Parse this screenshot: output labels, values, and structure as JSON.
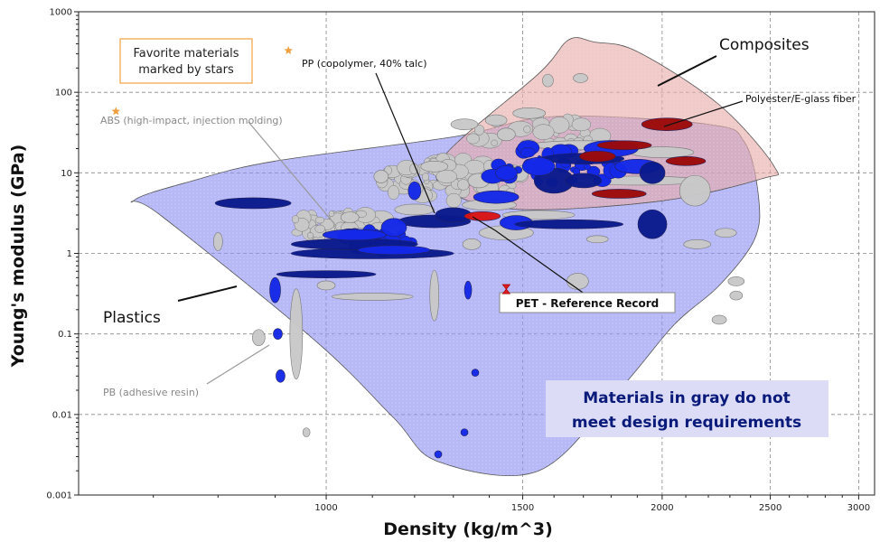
{
  "chart_data": {
    "type": "scatter",
    "title": "",
    "xlabel": "Density (kg/m^3)",
    "ylabel": "Young's modulus (GPa)",
    "x_scale": "log",
    "y_scale": "log",
    "xlim": [
      600,
      3100
    ],
    "ylim": [
      0.001,
      1000
    ],
    "x_ticks": [
      1000,
      1500,
      2000,
      2500,
      3000
    ],
    "y_ticks": [
      0.001,
      0.01,
      0.1,
      1,
      10,
      100,
      1000
    ],
    "x_tick_labels": [
      "1000",
      "1500",
      "2000",
      "2500",
      "3000"
    ],
    "y_tick_labels": [
      "0.001",
      "0.01",
      "0.1",
      "1",
      "10",
      "100",
      "1000"
    ],
    "grid": true,
    "envelopes": [
      {
        "name": "Plastics",
        "fill": "#8a8ef0",
        "points": [
          [
            672,
            4.5
          ],
          [
            710,
            3
          ],
          [
            980,
            0.08
          ],
          [
            1150,
            0.009
          ],
          [
            1260,
            0.0026
          ],
          [
            1550,
            0.002
          ],
          [
            1830,
            0.02
          ],
          [
            2050,
            0.13
          ],
          [
            2250,
            0.4
          ],
          [
            2420,
            1.5
          ],
          [
            2440,
            5
          ],
          [
            2370,
            24
          ],
          [
            2200,
            40
          ],
          [
            1600,
            50
          ],
          [
            1300,
            28
          ],
          [
            900,
            14
          ],
          [
            760,
            8
          ]
        ]
      },
      {
        "name": "Composites",
        "fill": "#e6a9a6",
        "points": [
          [
            1270,
            15
          ],
          [
            1550,
            170
          ],
          [
            1650,
            450
          ],
          [
            1740,
            420
          ],
          [
            1900,
            320
          ],
          [
            2250,
            70
          ],
          [
            2520,
            12
          ],
          [
            2460,
            8.5
          ],
          [
            2000,
            4.5
          ],
          [
            1500,
            3.5
          ],
          [
            1300,
            5.5
          ]
        ]
      }
    ],
    "materials": [
      {
        "x": 860,
        "y": 4.2,
        "rx": 42,
        "ry": 6,
        "color": "#0a1a8c"
      },
      {
        "x": 1250,
        "y": 2.5,
        "rx": 40,
        "ry": 7,
        "color": "#0a1a8c"
      },
      {
        "x": 1100,
        "y": 1.0,
        "rx": 90,
        "ry": 6,
        "color": "#0a1a8c"
      },
      {
        "x": 1060,
        "y": 1.3,
        "rx": 70,
        "ry": 6,
        "color": "#0a1a8c"
      },
      {
        "x": 1000,
        "y": 0.55,
        "rx": 55,
        "ry": 4,
        "color": "#0a1a8c"
      },
      {
        "x": 1060,
        "y": 1.7,
        "rx": 35,
        "ry": 6,
        "color": "#1428e8"
      },
      {
        "x": 1150,
        "y": 1.1,
        "rx": 40,
        "ry": 5,
        "color": "#1428e8"
      },
      {
        "x": 1480,
        "y": 2.4,
        "rx": 18,
        "ry": 8,
        "color": "#1428e8"
      },
      {
        "x": 1420,
        "y": 5,
        "rx": 25,
        "ry": 7,
        "color": "#1428e8"
      },
      {
        "x": 1650,
        "y": 2.3,
        "rx": 60,
        "ry": 5,
        "color": "#0a1a8c"
      },
      {
        "x": 1960,
        "y": 2.3,
        "rx": 16,
        "ry": 16,
        "color": "#0a1a8c"
      },
      {
        "x": 1600,
        "y": 8,
        "rx": 22,
        "ry": 14,
        "color": "#0a1a8c"
      },
      {
        "x": 1700,
        "y": 15,
        "rx": 45,
        "ry": 6,
        "color": "#0a1a8c"
      },
      {
        "x": 1800,
        "y": 20,
        "rx": 30,
        "ry": 9,
        "color": "#1428e8"
      },
      {
        "x": 1900,
        "y": 12,
        "rx": 25,
        "ry": 8,
        "color": "#1428e8"
      },
      {
        "x": 1960,
        "y": 10,
        "rx": 14,
        "ry": 12,
        "color": "#0a1a8c"
      },
      {
        "x": 1550,
        "y": 12,
        "rx": 18,
        "ry": 10,
        "color": "#1428e8"
      },
      {
        "x": 1450,
        "y": 10,
        "rx": 12,
        "ry": 8,
        "color": "#1428e8"
      },
      {
        "x": 900,
        "y": 0.35,
        "rx": 6,
        "ry": 14,
        "color": "#1428e8"
      },
      {
        "x": 905,
        "y": 0.1,
        "rx": 5,
        "ry": 6,
        "color": "#1428e8"
      },
      {
        "x": 910,
        "y": 0.03,
        "rx": 5,
        "ry": 7,
        "color": "#1428e8"
      },
      {
        "x": 1340,
        "y": 0.35,
        "rx": 4,
        "ry": 10,
        "color": "#1428e8"
      },
      {
        "x": 1360,
        "y": 0.033,
        "rx": 4,
        "ry": 4,
        "color": "#1428e8"
      },
      {
        "x": 1330,
        "y": 0.006,
        "rx": 4,
        "ry": 4,
        "color": "#1428e8"
      },
      {
        "x": 1260,
        "y": 0.0032,
        "rx": 4,
        "ry": 4,
        "color": "#1428e8"
      },
      {
        "x": 1200,
        "y": 6,
        "rx": 7,
        "ry": 10,
        "color": "#1428e8"
      },
      {
        "x": 1300,
        "y": 3,
        "rx": 20,
        "ry": 8,
        "color": "#0a1a8c"
      },
      {
        "x": 1150,
        "y": 2.1,
        "rx": 14,
        "ry": 10,
        "color": "#1428e8"
      },
      {
        "x": 1700,
        "y": 8,
        "rx": 20,
        "ry": 8,
        "color": "#0a1a8c"
      },
      {
        "x": 1380,
        "y": 2.9,
        "rx": 20,
        "ry": 5,
        "color": "#d81414"
      },
      {
        "x": 2020,
        "y": 40,
        "rx": 28,
        "ry": 7,
        "color": "#9c0a0a"
      },
      {
        "x": 1750,
        "y": 16,
        "rx": 20,
        "ry": 6,
        "color": "#9c0a0a"
      },
      {
        "x": 2100,
        "y": 14,
        "rx": 22,
        "ry": 5,
        "color": "#9c0a0a"
      },
      {
        "x": 1830,
        "y": 5.5,
        "rx": 30,
        "ry": 5,
        "color": "#9c0a0a"
      },
      {
        "x": 1850,
        "y": 22,
        "rx": 30,
        "ry": 5,
        "color": "#9c0a0a"
      },
      {
        "x": 1690,
        "y": 150,
        "rx": 8,
        "ry": 5,
        "color": "#c8c8c8"
      },
      {
        "x": 1580,
        "y": 140,
        "rx": 6,
        "ry": 7,
        "color": "#c8c8c8"
      },
      {
        "x": 1520,
        "y": 55,
        "rx": 18,
        "ry": 6,
        "color": "#c8c8c8"
      },
      {
        "x": 1420,
        "y": 45,
        "rx": 12,
        "ry": 6,
        "color": "#c8c8c8"
      },
      {
        "x": 1330,
        "y": 40,
        "rx": 15,
        "ry": 6,
        "color": "#c8c8c8"
      },
      {
        "x": 1450,
        "y": 30,
        "rx": 10,
        "ry": 7,
        "color": "#c8c8c8"
      },
      {
        "x": 1700,
        "y": 22,
        "rx": 60,
        "ry": 5,
        "color": "#c8c8c8"
      },
      {
        "x": 1900,
        "y": 8,
        "rx": 70,
        "ry": 5,
        "color": "#c8c8c8"
      },
      {
        "x": 2000,
        "y": 18,
        "rx": 35,
        "ry": 6,
        "color": "#c8c8c8"
      },
      {
        "x": 2140,
        "y": 6,
        "rx": 17,
        "ry": 17,
        "color": "#c8c8c8"
      },
      {
        "x": 1400,
        "y": 4,
        "rx": 30,
        "ry": 6,
        "color": "#c8c8c8"
      },
      {
        "x": 1550,
        "y": 3,
        "rx": 40,
        "ry": 5,
        "color": "#c8c8c8"
      },
      {
        "x": 1450,
        "y": 1.8,
        "rx": 30,
        "ry": 8,
        "color": "#c8c8c8"
      },
      {
        "x": 1680,
        "y": 0.45,
        "rx": 12,
        "ry": 9,
        "color": "#c8c8c8"
      },
      {
        "x": 1250,
        "y": 0.3,
        "rx": 5,
        "ry": 28,
        "color": "#c8c8c8"
      },
      {
        "x": 1100,
        "y": 0.29,
        "rx": 45,
        "ry": 4,
        "color": "#c8c8c8"
      },
      {
        "x": 940,
        "y": 0.1,
        "rx": 7,
        "ry": 50,
        "color": "#c8c8c8"
      },
      {
        "x": 870,
        "y": 0.09,
        "rx": 7,
        "ry": 9,
        "color": "#c8c8c8"
      },
      {
        "x": 960,
        "y": 0.006,
        "rx": 4,
        "ry": 5,
        "color": "#c8c8c8"
      },
      {
        "x": 800,
        "y": 1.4,
        "rx": 5,
        "ry": 10,
        "color": "#c8c8c8"
      },
      {
        "x": 1750,
        "y": 1.5,
        "rx": 12,
        "ry": 4,
        "color": "#c8c8c8"
      },
      {
        "x": 2150,
        "y": 1.3,
        "rx": 15,
        "ry": 5,
        "color": "#c8c8c8"
      },
      {
        "x": 2280,
        "y": 1.8,
        "rx": 12,
        "ry": 5,
        "color": "#c8c8c8"
      },
      {
        "x": 2330,
        "y": 0.45,
        "rx": 9,
        "ry": 5,
        "color": "#c8c8c8"
      },
      {
        "x": 2330,
        "y": 0.3,
        "rx": 7,
        "ry": 5,
        "color": "#c8c8c8"
      },
      {
        "x": 2250,
        "y": 0.15,
        "rx": 8,
        "ry": 5,
        "color": "#c8c8c8"
      },
      {
        "x": 1350,
        "y": 1.3,
        "rx": 10,
        "ry": 6,
        "color": "#c8c8c8"
      },
      {
        "x": 1200,
        "y": 3.5,
        "rx": 22,
        "ry": 6,
        "color": "#c8c8c8"
      },
      {
        "x": 1050,
        "y": 2.8,
        "rx": 10,
        "ry": 6,
        "color": "#c8c8c8"
      },
      {
        "x": 1000,
        "y": 0.4,
        "rx": 10,
        "ry": 5,
        "color": "#c8c8c8"
      },
      {
        "x": 1370,
        "y": 8,
        "rx": 12,
        "ry": 8,
        "color": "#c8c8c8"
      },
      {
        "x": 1250,
        "y": 12,
        "rx": 15,
        "ry": 6,
        "color": "#c8c8c8"
      },
      {
        "x": 1120,
        "y": 9,
        "rx": 8,
        "ry": 7,
        "color": "#c8c8c8"
      }
    ],
    "cluster_points": [
      {
        "x": 1030,
        "y": 2.0,
        "spread": 130,
        "count": 60,
        "color": "#c8c8c8"
      },
      {
        "x": 1300,
        "y": 8.0,
        "spread": 170,
        "count": 85,
        "color": "#c8c8c8"
      },
      {
        "x": 1120,
        "y": 1.5,
        "spread": 80,
        "count": 30,
        "color": "#1428e8"
      },
      {
        "x": 1600,
        "y": 12,
        "spread": 160,
        "count": 35,
        "color": "#1428e8"
      },
      {
        "x": 1550,
        "y": 30,
        "spread": 150,
        "count": 30,
        "color": "#c8c8c8"
      }
    ],
    "favorites": [
      {
        "x": 648,
        "y": 58,
        "color": "#f0a040"
      },
      {
        "x": 925,
        "y": 330,
        "color": "#f0a040"
      }
    ],
    "reference_point": {
      "x": 1450,
      "y": 0.36,
      "color": "#e02020"
    },
    "annotations": {
      "favorites_box": [
        "Favorite materials",
        "marked by stars"
      ],
      "pp_label": "PP (copolymer, 40% talc)",
      "abs_label": "ABS (high-impact, injection molding)",
      "pb_label": "PB (adhesive resin)",
      "polyester_label": "Polyester/E-glass fiber",
      "composites_label": "Composites",
      "plastics_label": "Plastics",
      "pet_label": "PET - Reference Record",
      "gray_note": [
        "Materials in gray do not",
        "meet design requirements"
      ]
    }
  }
}
